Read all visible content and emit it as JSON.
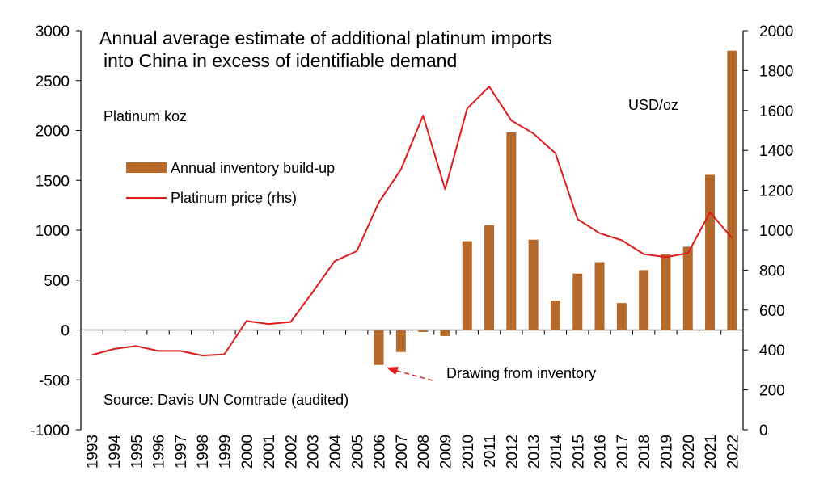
{
  "chart_data": {
    "type": "bar+line",
    "title_line1": "Annual average estimate of additional platinum imports",
    "title_line2": "into China in excess of identifiable demand",
    "ylabel_left": "Platinum koz",
    "ylabel_right": "USD/oz",
    "source": "Source: Davis UN Comtrade (audited)",
    "annotation": "Drawing from inventory",
    "ylim_left": [
      -1000,
      3000
    ],
    "yticks_left": [
      -1000,
      -500,
      0,
      500,
      1000,
      1500,
      2000,
      2500,
      3000
    ],
    "ylim_right": [
      0,
      2000
    ],
    "yticks_right": [
      0,
      200,
      400,
      600,
      800,
      1000,
      1200,
      1400,
      1600,
      1800,
      2000
    ],
    "categories": [
      "1993",
      "1994",
      "1995",
      "1996",
      "1997",
      "1998",
      "1999",
      "2000",
      "2001",
      "2002",
      "2003",
      "2004",
      "2005",
      "2006",
      "2007",
      "2008",
      "2009",
      "2010",
      "2011",
      "2012",
      "2013",
      "2014",
      "2015",
      "2016",
      "2017",
      "2018",
      "2019",
      "2020",
      "2021",
      "2022"
    ],
    "series": [
      {
        "name": "Annual inventory build-up",
        "type": "bar",
        "axis": "left",
        "color": "#b5692b",
        "values": [
          0,
          0,
          0,
          0,
          0,
          0,
          0,
          0,
          0,
          0,
          0,
          0,
          0,
          -350,
          -220,
          -20,
          -60,
          890,
          1050,
          1980,
          905,
          295,
          565,
          680,
          270,
          600,
          760,
          835,
          1555,
          2800
        ]
      },
      {
        "name": "Platinum price (rhs)",
        "type": "line",
        "axis": "right",
        "color": "#e01b1b",
        "values": [
          375,
          405,
          420,
          395,
          395,
          372,
          378,
          545,
          530,
          540,
          690,
          845,
          895,
          1140,
          1305,
          1575,
          1205,
          1610,
          1720,
          1550,
          1485,
          1385,
          1055,
          985,
          950,
          880,
          865,
          885,
          1090,
          960
        ]
      }
    ],
    "legend_placement": "upper-left",
    "grid": false
  }
}
